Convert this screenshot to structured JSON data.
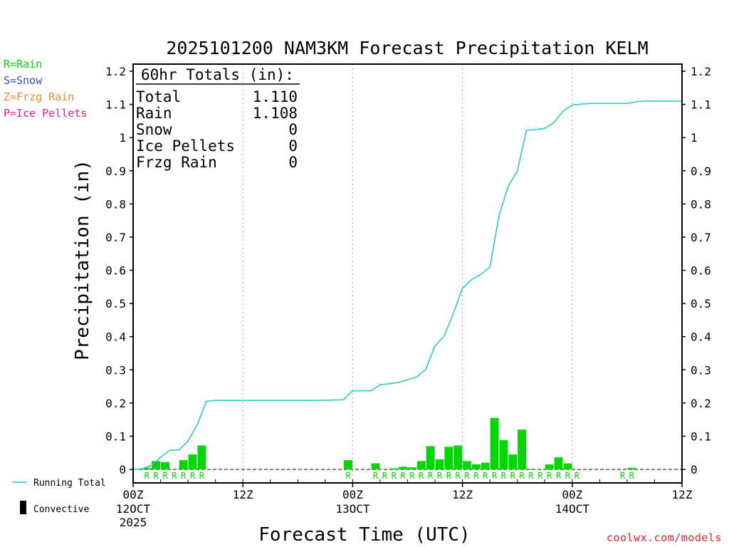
{
  "chart_data": {
    "type": "bar",
    "title": "2025101200 NAM3KM Forecast Precipitation KELM",
    "xlabel": "Forecast Time (UTC)",
    "ylabel": "Precipitation (in)",
    "ylim": [
      0,
      1.2
    ],
    "xlim_hours": [
      0,
      60
    ],
    "y_ticks": [
      "0",
      "0.1",
      "0.2",
      "0.3",
      "0.4",
      "0.5",
      "0.6",
      "0.7",
      "0.8",
      "0.9",
      "1",
      "1.1",
      "1.2"
    ],
    "x_ticks": [
      {
        "hour": 0,
        "time": "00Z",
        "date": "12OCT",
        "year": "2025"
      },
      {
        "hour": 12,
        "time": "12Z",
        "date": "",
        "year": ""
      },
      {
        "hour": 24,
        "time": "00Z",
        "date": "13OCT",
        "year": ""
      },
      {
        "hour": 36,
        "time": "12Z",
        "date": "",
        "year": ""
      },
      {
        "hour": 48,
        "time": "00Z",
        "date": "14OCT",
        "year": ""
      },
      {
        "hour": 60,
        "time": "12Z",
        "date": "",
        "year": ""
      }
    ],
    "gridlines_hours": [
      12,
      24,
      36,
      48
    ],
    "hourly_precip": {
      "hours": [
        2,
        3,
        4,
        6,
        7,
        8,
        24,
        27,
        29,
        30,
        31,
        32,
        33,
        34,
        35,
        36,
        37,
        38,
        39,
        40,
        41,
        42,
        43,
        44,
        46,
        47,
        48,
        55
      ],
      "values": [
        0.005,
        0.025,
        0.022,
        0.028,
        0.045,
        0.072,
        0.028,
        0.018,
        0.003,
        0.008,
        0.006,
        0.025,
        0.07,
        0.03,
        0.068,
        0.072,
        0.025,
        0.015,
        0.02,
        0.155,
        0.088,
        0.045,
        0.12,
        0.002,
        0.015,
        0.036,
        0.018,
        0.005
      ]
    },
    "ptype_hours": [
      2,
      3,
      4,
      5,
      6,
      7,
      8,
      24,
      27,
      28,
      29,
      30,
      31,
      32,
      33,
      34,
      35,
      36,
      37,
      38,
      39,
      40,
      41,
      42,
      43,
      44,
      45,
      46,
      47,
      48,
      49,
      54,
      55
    ],
    "ptype_letter": "R",
    "running_total": {
      "hours": [
        0,
        1,
        2,
        3,
        4,
        5,
        6,
        7,
        8,
        9,
        10,
        20,
        22,
        23,
        24,
        25,
        26,
        27,
        28,
        29,
        30,
        31,
        32,
        33,
        34,
        35,
        36,
        37,
        38,
        39,
        40,
        41,
        42,
        43,
        44,
        45,
        46,
        47,
        48,
        49,
        50,
        51,
        52,
        53,
        54,
        55,
        56,
        57,
        58,
        59,
        60
      ],
      "values": [
        0.0,
        0.002,
        0.012,
        0.036,
        0.058,
        0.058,
        0.085,
        0.133,
        0.205,
        0.208,
        0.208,
        0.208,
        0.209,
        0.21,
        0.237,
        0.237,
        0.237,
        0.255,
        0.258,
        0.262,
        0.27,
        0.278,
        0.302,
        0.372,
        0.402,
        0.47,
        0.545,
        0.572,
        0.587,
        0.61,
        0.765,
        0.853,
        0.9,
        1.022,
        1.024,
        1.028,
        1.045,
        1.08,
        1.098,
        1.101,
        1.103,
        1.103,
        1.103,
        1.103,
        1.103,
        1.108,
        1.11,
        1.11,
        1.11,
        1.11,
        1.11
      ]
    },
    "totals_box": {
      "heading": "60hr Totals (in):",
      "rows": [
        {
          "label": "Total",
          "value": "1.110"
        },
        {
          "label": "Rain",
          "value": "1.108"
        },
        {
          "label": "Snow",
          "value": "0"
        },
        {
          "label": "Ice Pellets",
          "value": "0"
        },
        {
          "label": "Frzg Rain",
          "value": "0"
        }
      ]
    },
    "ptype_legend": [
      {
        "label": "R=Rain",
        "color": "#00d800"
      },
      {
        "label": "S=Snow",
        "color": "#3050e0"
      },
      {
        "label": "Z=Frzg Rain",
        "color": "#f08c30"
      },
      {
        "label": "P=Ice Pellets",
        "color": "#e0208c"
      }
    ],
    "series_legend": [
      {
        "label": "Running Total",
        "color": "#20c8c8"
      },
      {
        "label": "Convective",
        "color": "#000000"
      }
    ],
    "colors": {
      "bar": "#00d800",
      "line": "#20c8c8"
    }
  },
  "credit": "coolwx.com/models"
}
